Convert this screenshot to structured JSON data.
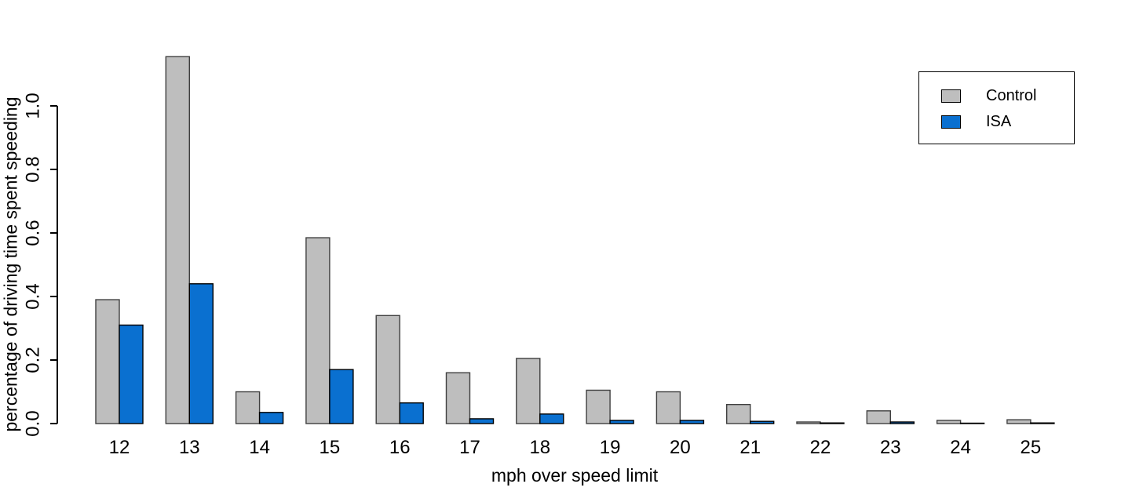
{
  "chart_data": {
    "type": "bar",
    "title": "",
    "xlabel": "mph over speed limit",
    "ylabel": "percentage of driving time spent speeding",
    "categories": [
      "12",
      "13",
      "14",
      "15",
      "16",
      "17",
      "18",
      "19",
      "20",
      "21",
      "22",
      "23",
      "24",
      "25"
    ],
    "series": [
      {
        "name": "Control",
        "color": "#bebebe",
        "border": "#3f3f3f",
        "values": [
          0.39,
          1.155,
          0.1,
          0.585,
          0.34,
          0.16,
          0.205,
          0.105,
          0.1,
          0.06,
          0.005,
          0.04,
          0.01,
          0.012
        ]
      },
      {
        "name": "ISA",
        "color": "#0a70d0",
        "border": "#000000",
        "values": [
          0.31,
          0.44,
          0.035,
          0.17,
          0.065,
          0.015,
          0.03,
          0.01,
          0.01,
          0.007,
          0.002,
          0.005,
          0.001,
          0.002
        ]
      }
    ],
    "ylim": [
      0,
      1.16
    ],
    "yticks": [
      0.0,
      0.2,
      0.4,
      0.6,
      0.8,
      1.0
    ],
    "ytick_labels": [
      "0.0",
      "0.2",
      "0.4",
      "0.6",
      "0.8",
      "1.0"
    ],
    "grid": false,
    "legend_position": "top-right",
    "axis_color": "#000000",
    "background_color": "#ffffff"
  }
}
